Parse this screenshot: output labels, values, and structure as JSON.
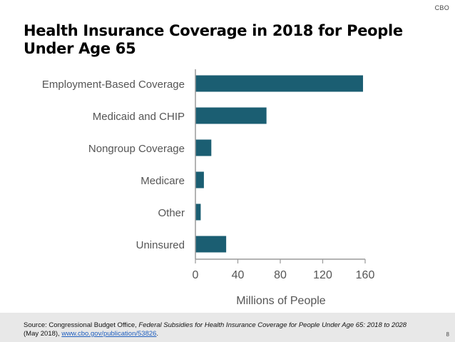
{
  "header": {
    "logo": "CBO",
    "title_line1": "Health Insurance Coverage in 2018 for People",
    "title_line2": "Under Age 65"
  },
  "colors": {
    "bar": "#1b5e72",
    "axis": "#9a9a9a",
    "label": "#555555",
    "footer_bg": "#e8e8e8",
    "link": "#1f5fbf"
  },
  "chart_data": {
    "type": "bar",
    "orientation": "horizontal",
    "categories": [
      "Employment-Based Coverage",
      "Medicaid and CHIP",
      "Nongroup Coverage",
      "Medicare",
      "Other",
      "Uninsured"
    ],
    "values": [
      158,
      67,
      15,
      8,
      5,
      29
    ],
    "xlabel": "Millions of People",
    "ylabel": "",
    "xlim": [
      0,
      160
    ],
    "xticks": [
      0,
      40,
      80,
      120,
      160
    ],
    "xtick_labels": [
      "0",
      "40",
      "80",
      "120",
      "160"
    ],
    "grid": false,
    "legend": "none"
  },
  "footer": {
    "source_prefix": "Source: Congressional Budget Office, ",
    "source_title": "Federal Subsidies for Health Insurance Coverage for People Under Age 65: 2018 to 2028",
    "source_date": " (May 2018), ",
    "source_link": "www.cbo.gov/publication/53826",
    "source_end": ".",
    "page_number": "8"
  }
}
